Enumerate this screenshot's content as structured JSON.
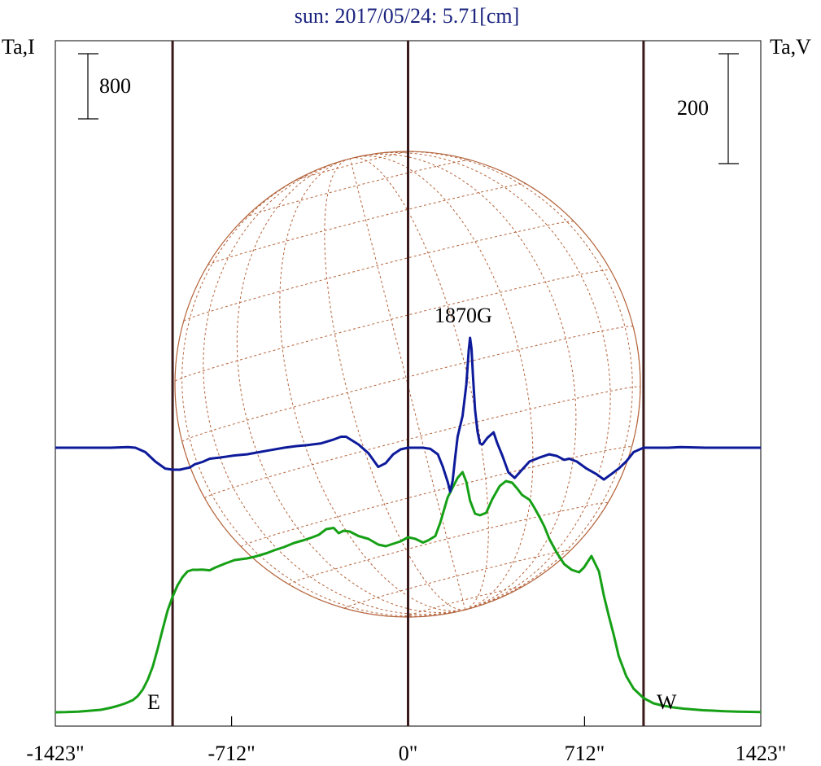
{
  "chart_data": {
    "type": "line",
    "title": "sun: 2017/05/24: 5.71[cm]",
    "left_axis_label": "Ta,I",
    "right_axis_label": "Ta,V",
    "left_scale_bar_label": "800",
    "right_scale_bar_label": "200",
    "xticks": [
      "-1423\"",
      "-712\"",
      "0\"",
      "712\"",
      "1423\""
    ],
    "x_range": [
      -1423,
      1423
    ],
    "vertical_markers": [
      -950,
      0,
      950
    ],
    "limb_labels": {
      "east": "E",
      "west": "W"
    },
    "annotation": "1870G",
    "colors": {
      "title": "#1a237e",
      "intensity": "#16a016",
      "polarization": "#0d1a9a",
      "markers": "#3a1a1a",
      "disk": "#b4643c"
    },
    "series": [
      {
        "key": "I",
        "x": [
          -1423,
          -1380,
          -1330,
          -1280,
          -1240,
          -1200,
          -1170,
          -1140,
          -1110,
          -1090,
          -1070,
          -1050,
          -1030,
          -1010,
          -990,
          -970,
          -950,
          -930,
          -910,
          -890,
          -870,
          -850,
          -830,
          -800,
          -780,
          -740,
          -700,
          -650,
          -620,
          -570,
          -540,
          -500,
          -460,
          -420,
          -390,
          -360,
          -330,
          -300,
          -280,
          -260,
          -235,
          -200,
          -160,
          -120,
          -90,
          -60,
          -30,
          0,
          30,
          60,
          80,
          110,
          130,
          160,
          180,
          200,
          220,
          235,
          250,
          270,
          290,
          315,
          340,
          370,
          395,
          420,
          440,
          460,
          490,
          510,
          530,
          550,
          570,
          600,
          630,
          660,
          690,
          710,
          740,
          770,
          790,
          810,
          830,
          850,
          880,
          910,
          950,
          990,
          1030,
          1070,
          1110,
          1150,
          1190,
          1230,
          1280,
          1330,
          1380,
          1423
        ],
        "y": [
          0,
          2,
          8,
          20,
          30,
          55,
          80,
          110,
          150,
          200,
          280,
          400,
          560,
          780,
          1020,
          1250,
          1420,
          1560,
          1660,
          1730,
          1750,
          1750,
          1752,
          1744,
          1775,
          1825,
          1870,
          1890,
          1910,
          1955,
          1990,
          2030,
          2080,
          2115,
          2145,
          2180,
          2250,
          2265,
          2200,
          2230,
          2220,
          2165,
          2130,
          2060,
          2040,
          2070,
          2100,
          2150,
          2130,
          2085,
          2110,
          2165,
          2330,
          2640,
          2760,
          2880,
          2950,
          2830,
          2600,
          2440,
          2420,
          2450,
          2620,
          2780,
          2840,
          2820,
          2750,
          2670,
          2610,
          2510,
          2400,
          2280,
          2130,
          1960,
          1820,
          1750,
          1720,
          1780,
          1920,
          1730,
          1430,
          1180,
          950,
          690,
          445,
          290,
          175,
          110,
          80,
          60,
          45,
          35,
          25,
          20,
          12,
          8,
          5,
          2
        ]
      },
      {
        "key": "V",
        "x": [
          -1423,
          -1300,
          -1200,
          -1130,
          -1100,
          -1060,
          -1020,
          -980,
          -950,
          -920,
          -900,
          -880,
          -860,
          -830,
          -800,
          -760,
          -730,
          -700,
          -650,
          -600,
          -550,
          -500,
          -450,
          -400,
          -350,
          -300,
          -270,
          -250,
          -200,
          -160,
          -120,
          -90,
          -60,
          -30,
          0,
          30,
          60,
          90,
          120,
          140,
          160,
          170,
          180,
          190,
          200,
          220,
          235,
          245,
          250,
          256,
          262,
          270,
          280,
          290,
          300,
          320,
          345,
          360,
          380,
          405,
          430,
          460,
          490,
          530,
          570,
          600,
          630,
          650,
          680,
          720,
          760,
          790,
          820,
          850,
          880,
          910,
          950,
          1000,
          1050,
          1100,
          1200,
          1300,
          1423
        ],
        "y": [
          0,
          0,
          0,
          1,
          0,
          -8,
          -25,
          -38,
          -40,
          -40,
          -38,
          -36,
          -30,
          -26,
          -20,
          -18,
          -16,
          -14,
          -12,
          -8,
          -4,
          0,
          3,
          5,
          8,
          15,
          20,
          20,
          6,
          -10,
          -35,
          -28,
          -12,
          -3,
          0,
          0,
          0,
          -2,
          -12,
          -34,
          -62,
          -80,
          -60,
          -18,
          20,
          58,
          115,
          178,
          200,
          180,
          130,
          70,
          30,
          8,
          6,
          18,
          28,
          8,
          -14,
          -45,
          -55,
          -40,
          -25,
          -18,
          -12,
          -15,
          -22,
          -20,
          -25,
          -38,
          -48,
          -58,
          -48,
          -38,
          -25,
          -8,
          0,
          0,
          0,
          1,
          0,
          0,
          0
        ]
      }
    ]
  }
}
